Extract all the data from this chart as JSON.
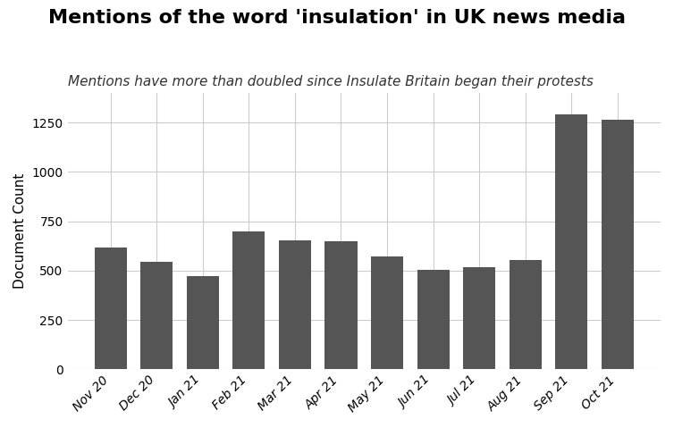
{
  "title": "Mentions of the word 'insulation' in UK news media",
  "subtitle": "Mentions have more than doubled since Insulate Britain began their protests",
  "ylabel": "Document Count",
  "categories": [
    "Nov 20",
    "Dec 20",
    "Jan 21",
    "Feb 21",
    "Mar 21",
    "Apr 21",
    "May 21",
    "Jun 21",
    "Jul 21",
    "Aug 21",
    "Sep 21",
    "Oct 21"
  ],
  "values": [
    615,
    545,
    470,
    700,
    655,
    650,
    570,
    505,
    515,
    555,
    1290,
    1265
  ],
  "bar_color": "#555555",
  "background_color": "#ffffff",
  "ylim": [
    0,
    1400
  ],
  "yticks": [
    0,
    250,
    500,
    750,
    1000,
    1250
  ],
  "title_fontsize": 16,
  "subtitle_fontsize": 11,
  "ylabel_fontsize": 11,
  "tick_fontsize": 10
}
